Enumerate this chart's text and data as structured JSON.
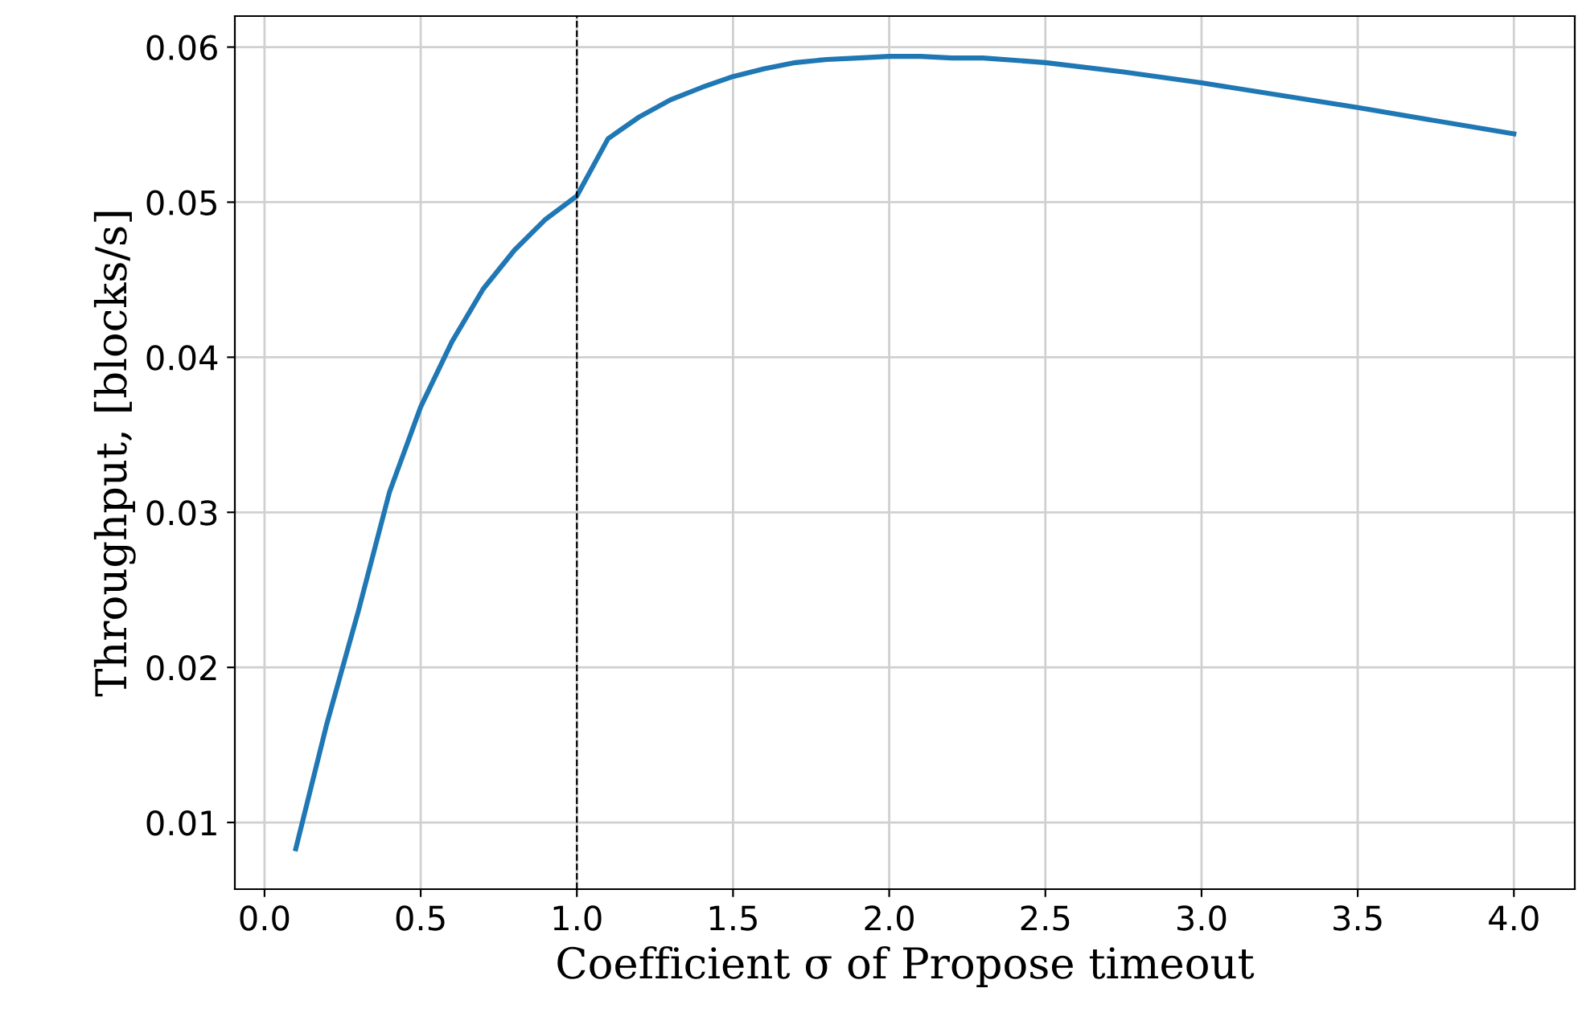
{
  "chart_data": {
    "type": "line",
    "xlabel": "Coefficient σ of Propose timeout",
    "ylabel": "Throughput, [blocks/s]",
    "x": [
      0.1,
      0.2,
      0.3,
      0.4,
      0.5,
      0.6,
      0.7,
      0.8,
      0.9,
      1.0,
      1.1,
      1.2,
      1.3,
      1.4,
      1.5,
      1.6,
      1.7,
      1.8,
      1.9,
      2.0,
      2.1,
      2.2,
      2.3,
      2.5,
      2.75,
      3.0,
      3.5,
      4.0
    ],
    "series": [
      {
        "color": "#1f77b4",
        "values": [
          0.0083,
          0.0164,
          0.0236,
          0.0313,
          0.0368,
          0.041,
          0.0444,
          0.0469,
          0.0489,
          0.0504,
          0.0541,
          0.0555,
          0.0566,
          0.0574,
          0.0581,
          0.0586,
          0.059,
          0.0592,
          0.0593,
          0.0594,
          0.0594,
          0.0593,
          0.0593,
          0.059,
          0.0584,
          0.0577,
          0.0561,
          0.0544
        ]
      }
    ],
    "xlim": [
      -0.095,
      4.195
    ],
    "ylim": [
      0.0057,
      0.062
    ],
    "xticks": [
      {
        "value": 0,
        "label": "0.0"
      },
      0.5,
      {
        "value": 1,
        "label": "1.0"
      },
      1.5,
      {
        "value": 2,
        "label": "2.0"
      },
      2.5,
      {
        "value": 3,
        "label": "3.0"
      },
      3.5,
      {
        "value": 4,
        "label": "4.0"
      }
    ],
    "yticks": [
      0.01,
      0.02,
      0.03,
      0.04,
      0.05,
      0.06
    ],
    "ref_lines": [
      {
        "axis": "x",
        "value": 1.0,
        "color": "#000000",
        "line_style": "dashed"
      }
    ],
    "grid": true,
    "legend": false
  }
}
